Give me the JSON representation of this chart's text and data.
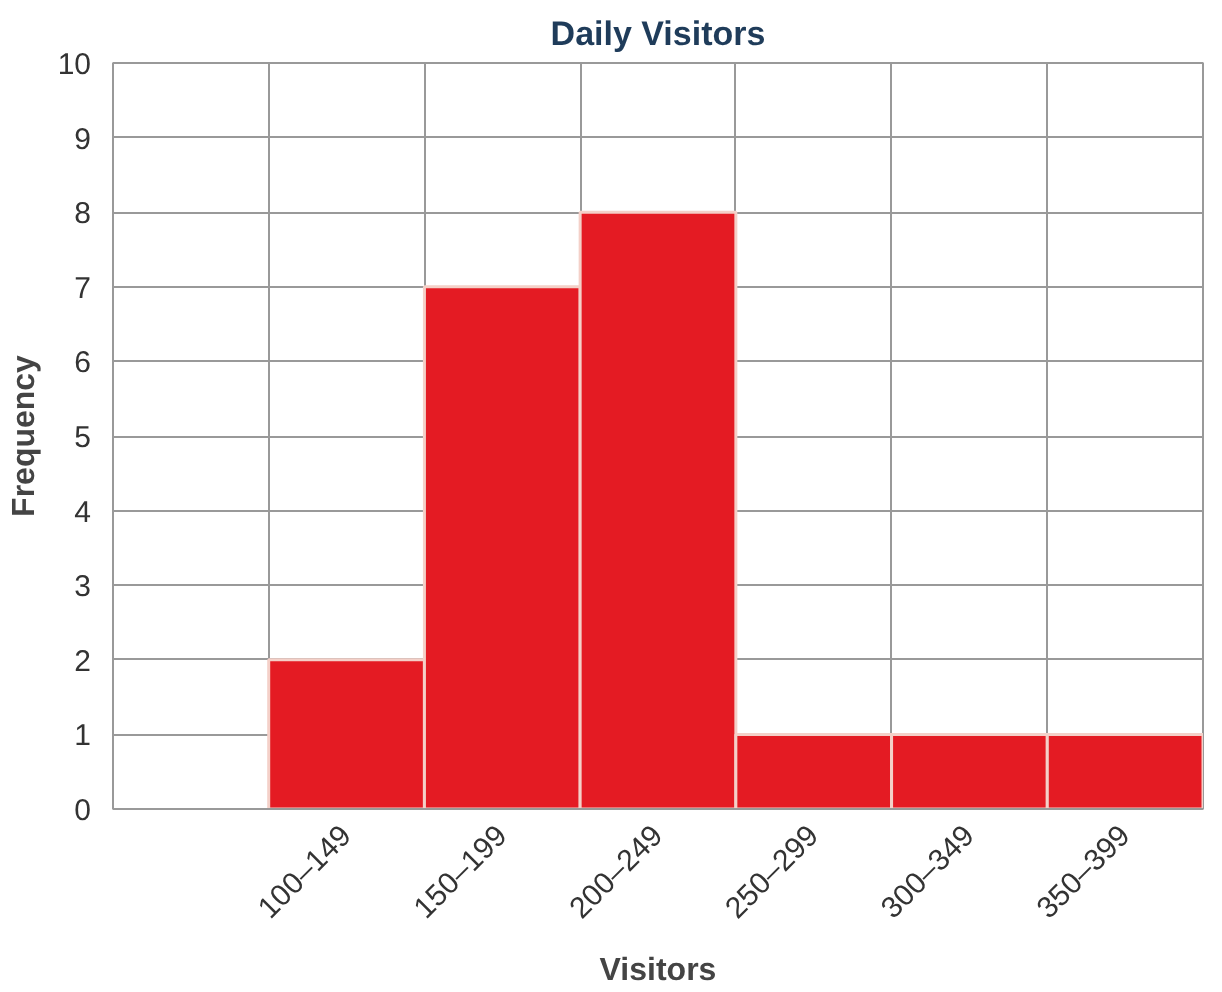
{
  "chart_data": {
    "type": "bar",
    "title": "Daily Visitors",
    "xlabel": "Visitors",
    "ylabel": "Frequency",
    "categories": [
      null,
      "100–149",
      "150–199",
      "200–249",
      "250–299",
      "300–349",
      "350–399"
    ],
    "values": [
      null,
      2,
      7,
      8,
      1,
      1,
      1
    ],
    "color": "#e41b23",
    "ylim": [
      0,
      10
    ],
    "yticks": [
      0,
      1,
      2,
      3,
      4,
      5,
      6,
      7,
      8,
      9,
      10
    ],
    "grid": true
  }
}
